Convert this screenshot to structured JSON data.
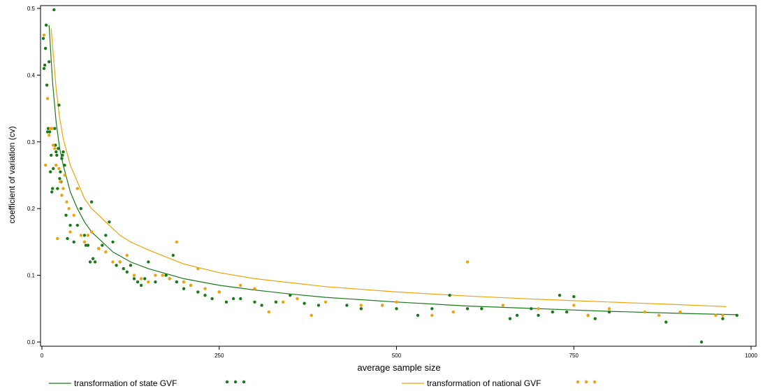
{
  "chart_data": {
    "type": "scatter",
    "xlabel": "average sample size",
    "ylabel": "coefficient of variation (cv)",
    "xlim": [
      0,
      1000
    ],
    "ylim": [
      0,
      0.5
    ],
    "x_ticks": [
      0,
      250,
      500,
      750,
      1000
    ],
    "y_ticks": [
      0.0,
      0.1,
      0.2,
      0.3,
      0.4,
      0.5
    ],
    "x_tick_labels": [
      "0",
      "250",
      "500",
      "750",
      "1000"
    ],
    "y_tick_labels": [
      "0.0",
      "0.1",
      "0.2",
      "0.3",
      "0.4",
      "0.5"
    ],
    "grid": false,
    "legend_position": "bottom",
    "series": [
      {
        "name": "transformation of state GVF",
        "kind": "line",
        "color": "#1a7a1a",
        "x": [
          10,
          15,
          20,
          25,
          30,
          40,
          50,
          60,
          70,
          80,
          100,
          125,
          150,
          200,
          250,
          300,
          350,
          400,
          500,
          600,
          700,
          800,
          900,
          980
        ],
        "y": [
          0.475,
          0.39,
          0.33,
          0.29,
          0.265,
          0.225,
          0.2,
          0.18,
          0.165,
          0.155,
          0.135,
          0.12,
          0.11,
          0.095,
          0.085,
          0.078,
          0.072,
          0.067,
          0.06,
          0.054,
          0.05,
          0.046,
          0.043,
          0.041
        ]
      },
      {
        "name": "transformation of national GVF",
        "kind": "line",
        "color": "#f0a20a",
        "x": [
          13,
          20,
          25,
          30,
          40,
          50,
          60,
          70,
          80,
          90,
          100,
          110,
          125,
          150,
          200,
          250,
          300,
          350,
          400,
          500,
          600,
          700,
          800,
          900,
          965
        ],
        "y": [
          0.47,
          0.38,
          0.335,
          0.305,
          0.265,
          0.24,
          0.215,
          0.2,
          0.19,
          0.18,
          0.17,
          0.16,
          0.15,
          0.138,
          0.117,
          0.104,
          0.095,
          0.089,
          0.083,
          0.075,
          0.069,
          0.064,
          0.06,
          0.056,
          0.053
        ]
      },
      {
        "name": "state points",
        "kind": "points",
        "color": "#1a7a1a",
        "x": [
          2,
          3,
          4,
          5,
          6,
          7,
          8,
          9,
          10,
          11,
          12,
          13,
          14,
          15,
          16,
          17,
          18,
          19,
          20,
          21,
          22,
          23,
          24,
          25,
          26,
          27,
          28,
          29,
          30,
          32,
          34,
          36,
          40,
          45,
          50,
          55,
          60,
          62,
          65,
          68,
          70,
          72,
          75,
          80,
          85,
          90,
          95,
          100,
          105,
          110,
          115,
          120,
          125,
          130,
          135,
          140,
          145,
          150,
          160,
          175,
          180,
          185,
          190,
          200,
          210,
          220,
          230,
          240,
          250,
          260,
          270,
          280,
          300,
          310,
          330,
          350,
          370,
          390,
          430,
          450,
          480,
          500,
          530,
          550,
          575,
          600,
          620,
          660,
          670,
          690,
          700,
          720,
          730,
          740,
          750,
          770,
          780,
          800,
          880,
          930,
          960,
          980
        ],
        "y": [
          0.455,
          0.41,
          0.415,
          0.44,
          0.475,
          0.385,
          0.315,
          0.32,
          0.42,
          0.315,
          0.255,
          0.28,
          0.225,
          0.23,
          0.26,
          0.498,
          0.32,
          0.295,
          0.285,
          0.28,
          0.23,
          0.29,
          0.355,
          0.245,
          0.255,
          0.24,
          0.275,
          0.28,
          0.285,
          0.265,
          0.19,
          0.155,
          0.175,
          0.15,
          0.175,
          0.2,
          0.16,
          0.145,
          0.145,
          0.12,
          0.21,
          0.125,
          0.12,
          0.14,
          0.145,
          0.16,
          0.18,
          0.15,
          0.115,
          0.12,
          0.11,
          0.105,
          0.115,
          0.095,
          0.09,
          0.085,
          0.095,
          0.12,
          0.09,
          0.1,
          0.095,
          0.13,
          0.09,
          0.08,
          0.085,
          0.075,
          0.07,
          0.065,
          0.075,
          0.06,
          0.065,
          0.065,
          0.06,
          0.055,
          0.06,
          0.07,
          0.058,
          0.055,
          0.055,
          0.05,
          0.055,
          0.05,
          0.04,
          0.05,
          0.07,
          0.05,
          0.05,
          0.035,
          0.04,
          0.05,
          0.04,
          0.045,
          0.07,
          0.045,
          0.068,
          0.04,
          0.035,
          0.045,
          0.03,
          0.0,
          0.035,
          0.04
        ]
      },
      {
        "name": "national points",
        "kind": "points",
        "color": "#f0a20a",
        "x": [
          3,
          5,
          8,
          10,
          12,
          14,
          16,
          18,
          20,
          22,
          24,
          26,
          28,
          30,
          32,
          35,
          38,
          40,
          45,
          50,
          55,
          60,
          65,
          70,
          80,
          90,
          100,
          110,
          120,
          130,
          140,
          150,
          160,
          170,
          180,
          190,
          200,
          210,
          220,
          230,
          250,
          280,
          300,
          320,
          340,
          360,
          380,
          400,
          450,
          480,
          500,
          550,
          580,
          600,
          650,
          700,
          750,
          770,
          800,
          850,
          870,
          900,
          950,
          960
        ],
        "y": [
          0.46,
          0.265,
          0.365,
          0.31,
          0.32,
          0.32,
          0.295,
          0.29,
          0.265,
          0.155,
          0.26,
          0.24,
          0.22,
          0.23,
          0.25,
          0.21,
          0.2,
          0.165,
          0.19,
          0.23,
          0.16,
          0.15,
          0.16,
          0.165,
          0.14,
          0.135,
          0.12,
          0.12,
          0.13,
          0.1,
          0.095,
          0.09,
          0.1,
          0.1,
          0.095,
          0.15,
          0.09,
          0.085,
          0.11,
          0.08,
          0.075,
          0.085,
          0.08,
          0.045,
          0.06,
          0.065,
          0.04,
          0.06,
          0.055,
          0.055,
          0.06,
          0.04,
          0.045,
          0.12,
          0.055,
          0.05,
          0.055,
          0.04,
          0.05,
          0.045,
          0.04,
          0.045,
          0.04,
          0.04
        ]
      }
    ],
    "legend": [
      {
        "label": "transformation of state GVF",
        "color": "#1a7a1a"
      },
      {
        "label": "transformation of national GVF",
        "color": "#f0a20a"
      }
    ]
  }
}
